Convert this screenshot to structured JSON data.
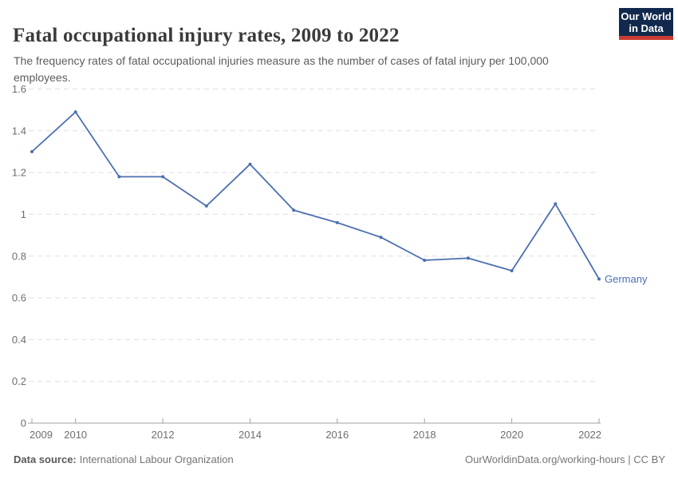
{
  "header": {
    "title": "Fatal occupational injury rates, 2009 to 2022",
    "subtitle": "The frequency rates of fatal occupational injuries measure as the number of cases of fatal injury per 100,000 employees.",
    "logo": {
      "line1": "Our World",
      "line2": "in Data",
      "bg_color": "#12294e",
      "accent_color": "#cb3b31"
    }
  },
  "chart_data": {
    "type": "line",
    "title": "Fatal occupational injury rates, 2009 to 2022",
    "x": [
      2009,
      2010,
      2011,
      2012,
      2013,
      2014,
      2015,
      2016,
      2017,
      2018,
      2019,
      2020,
      2021,
      2022
    ],
    "series": [
      {
        "name": "Germany",
        "color": "#4c6fb1",
        "values": [
          1.3,
          1.49,
          1.18,
          1.18,
          1.04,
          1.24,
          1.02,
          0.96,
          0.89,
          0.78,
          0.79,
          0.73,
          1.05,
          0.69
        ]
      }
    ],
    "xlabel": "",
    "ylabel": "",
    "ylim": [
      0,
      1.6
    ],
    "yticks": [
      0,
      0.2,
      0.4,
      0.6,
      0.8,
      1,
      1.2,
      1.4,
      1.6
    ],
    "xticks": [
      2009,
      2010,
      2012,
      2014,
      2016,
      2018,
      2020,
      2022
    ],
    "grid": "horizontal-dashed",
    "legend_position": "end-of-line",
    "colors": {
      "grid": "#dedede",
      "axis": "#a1a1a1",
      "tick_label": "#6e6e6e"
    }
  },
  "footer": {
    "source_label": "Data source:",
    "source_value": "International Labour Organization",
    "attribution": "OurWorldinData.org/working-hours | CC BY"
  }
}
